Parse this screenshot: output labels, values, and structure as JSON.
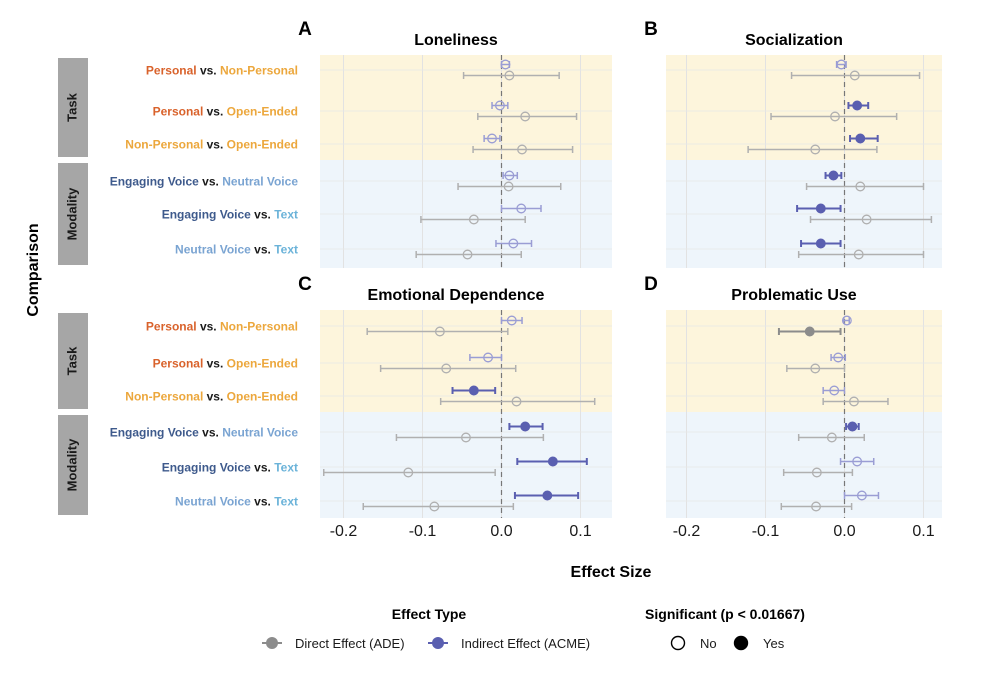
{
  "chart_data": {
    "type": "forest",
    "xlabel": "Effect Size",
    "ylabel": "Comparison",
    "xlim": [
      -0.23,
      0.14
    ],
    "xticks": [
      -0.2,
      -0.1,
      0.0,
      0.1
    ],
    "xtick_labels": [
      "-0.2",
      "-0.1",
      "0.0",
      "0.1"
    ],
    "reference_line": 0.0,
    "colors": {
      "personal": "#d9622b",
      "non_personal": "#eca73c",
      "open_ended": "#eca73c",
      "engaging_voice": "#3e5a8c",
      "neutral_voice": "#7aa4d2",
      "text": "#6bb3d9",
      "vs": "#1a1a1a",
      "direct": "#8c8c8c",
      "direct_light": "#b0b0b0",
      "indirect": "#5a5fb0",
      "indirect_light": "#9a9dd4",
      "task_bg": "#fdf5dc",
      "modality_bg": "#eef5fb",
      "strip_bg": "#a6a6a6",
      "strip_text": "#1a1a1a"
    },
    "groups": [
      {
        "name": "Task",
        "rows": [
          0,
          1,
          2
        ]
      },
      {
        "name": "Modality",
        "rows": [
          3,
          4,
          5
        ]
      }
    ],
    "rows": [
      {
        "left": "Personal",
        "left_key": "personal",
        "vs": "vs.",
        "right": "Non-Personal",
        "right_key": "non_personal"
      },
      {
        "left": "Personal",
        "left_key": "personal",
        "vs": "vs.",
        "right": "Open-Ended",
        "right_key": "open_ended"
      },
      {
        "left": "Non-Personal",
        "left_key": "non_personal",
        "vs": "vs.",
        "right": "Open-Ended",
        "right_key": "open_ended"
      },
      {
        "left": "Engaging Voice",
        "left_key": "engaging_voice",
        "vs": "vs.",
        "right": "Neutral Voice",
        "right_key": "neutral_voice"
      },
      {
        "left": "Engaging Voice",
        "left_key": "engaging_voice",
        "vs": "vs.",
        "right": "Text",
        "right_key": "text"
      },
      {
        "left": "Neutral Voice",
        "left_key": "neutral_voice",
        "vs": "vs.",
        "right": "Text",
        "right_key": "text"
      }
    ],
    "panels": [
      {
        "letter": "A",
        "title": "Loneliness",
        "series": [
          {
            "row": 0,
            "type": "indirect",
            "est": 0.005,
            "lo": 0.0,
            "hi": 0.01,
            "sig": false
          },
          {
            "row": 0,
            "type": "direct",
            "est": 0.01,
            "lo": -0.048,
            "hi": 0.073,
            "sig": false
          },
          {
            "row": 1,
            "type": "indirect",
            "est": -0.002,
            "lo": -0.012,
            "hi": 0.008,
            "sig": false
          },
          {
            "row": 1,
            "type": "direct",
            "est": 0.03,
            "lo": -0.03,
            "hi": 0.095,
            "sig": false
          },
          {
            "row": 2,
            "type": "indirect",
            "est": -0.012,
            "lo": -0.022,
            "hi": -0.002,
            "sig": false
          },
          {
            "row": 2,
            "type": "direct",
            "est": 0.026,
            "lo": -0.036,
            "hi": 0.09,
            "sig": false
          },
          {
            "row": 3,
            "type": "indirect",
            "est": 0.01,
            "lo": 0.002,
            "hi": 0.02,
            "sig": false
          },
          {
            "row": 3,
            "type": "direct",
            "est": 0.009,
            "lo": -0.055,
            "hi": 0.075,
            "sig": false
          },
          {
            "row": 4,
            "type": "indirect",
            "est": 0.025,
            "lo": 0.0,
            "hi": 0.05,
            "sig": false
          },
          {
            "row": 4,
            "type": "direct",
            "est": -0.035,
            "lo": -0.102,
            "hi": 0.03,
            "sig": false
          },
          {
            "row": 5,
            "type": "indirect",
            "est": 0.015,
            "lo": -0.007,
            "hi": 0.038,
            "sig": false
          },
          {
            "row": 5,
            "type": "direct",
            "est": -0.043,
            "lo": -0.108,
            "hi": 0.025,
            "sig": false
          }
        ]
      },
      {
        "letter": "B",
        "title": "Socialization",
        "series": [
          {
            "row": 0,
            "type": "indirect",
            "est": -0.004,
            "lo": -0.01,
            "hi": 0.002,
            "sig": false
          },
          {
            "row": 0,
            "type": "direct",
            "est": 0.013,
            "lo": -0.067,
            "hi": 0.095,
            "sig": false
          },
          {
            "row": 1,
            "type": "indirect",
            "est": 0.016,
            "lo": 0.005,
            "hi": 0.03,
            "sig": true
          },
          {
            "row": 1,
            "type": "direct",
            "est": -0.012,
            "lo": -0.093,
            "hi": 0.066,
            "sig": false
          },
          {
            "row": 2,
            "type": "indirect",
            "est": 0.02,
            "lo": 0.007,
            "hi": 0.042,
            "sig": true
          },
          {
            "row": 2,
            "type": "direct",
            "est": -0.037,
            "lo": -0.122,
            "hi": 0.041,
            "sig": false
          },
          {
            "row": 3,
            "type": "indirect",
            "est": -0.014,
            "lo": -0.024,
            "hi": -0.004,
            "sig": true
          },
          {
            "row": 3,
            "type": "direct",
            "est": 0.02,
            "lo": -0.048,
            "hi": 0.1,
            "sig": false
          },
          {
            "row": 4,
            "type": "indirect",
            "est": -0.03,
            "lo": -0.06,
            "hi": -0.005,
            "sig": true
          },
          {
            "row": 4,
            "type": "direct",
            "est": 0.028,
            "lo": -0.043,
            "hi": 0.11,
            "sig": false
          },
          {
            "row": 5,
            "type": "indirect",
            "est": -0.03,
            "lo": -0.055,
            "hi": -0.005,
            "sig": true
          },
          {
            "row": 5,
            "type": "direct",
            "est": 0.018,
            "lo": -0.058,
            "hi": 0.1,
            "sig": false
          }
        ]
      },
      {
        "letter": "C",
        "title": "Emotional Dependence",
        "series": [
          {
            "row": 0,
            "type": "indirect",
            "est": 0.013,
            "lo": 0.0,
            "hi": 0.026,
            "sig": false
          },
          {
            "row": 0,
            "type": "direct",
            "est": -0.078,
            "lo": -0.17,
            "hi": 0.008,
            "sig": false
          },
          {
            "row": 1,
            "type": "indirect",
            "est": -0.017,
            "lo": -0.04,
            "hi": 0.0,
            "sig": false
          },
          {
            "row": 1,
            "type": "direct",
            "est": -0.07,
            "lo": -0.153,
            "hi": 0.018,
            "sig": false
          },
          {
            "row": 2,
            "type": "indirect",
            "est": -0.035,
            "lo": -0.062,
            "hi": -0.008,
            "sig": true
          },
          {
            "row": 2,
            "type": "direct",
            "est": 0.019,
            "lo": -0.077,
            "hi": 0.118,
            "sig": false
          },
          {
            "row": 3,
            "type": "indirect",
            "est": 0.03,
            "lo": 0.01,
            "hi": 0.052,
            "sig": true
          },
          {
            "row": 3,
            "type": "direct",
            "est": -0.045,
            "lo": -0.133,
            "hi": 0.053,
            "sig": false
          },
          {
            "row": 4,
            "type": "indirect",
            "est": 0.065,
            "lo": 0.02,
            "hi": 0.108,
            "sig": true
          },
          {
            "row": 4,
            "type": "direct",
            "est": -0.118,
            "lo": -0.225,
            "hi": -0.008,
            "sig": false
          },
          {
            "row": 5,
            "type": "indirect",
            "est": 0.058,
            "lo": 0.017,
            "hi": 0.097,
            "sig": true
          },
          {
            "row": 5,
            "type": "direct",
            "est": -0.085,
            "lo": -0.175,
            "hi": 0.015,
            "sig": false
          }
        ]
      },
      {
        "letter": "D",
        "title": "Problematic Use",
        "series": [
          {
            "row": 0,
            "type": "indirect",
            "est": 0.003,
            "lo": -0.001,
            "hi": 0.006,
            "sig": false
          },
          {
            "row": 0,
            "type": "direct",
            "est": -0.044,
            "lo": -0.083,
            "hi": -0.005,
            "sig": true
          },
          {
            "row": 1,
            "type": "indirect",
            "est": -0.008,
            "lo": -0.017,
            "hi": 0.001,
            "sig": false
          },
          {
            "row": 1,
            "type": "direct",
            "est": -0.037,
            "lo": -0.073,
            "hi": 0.0,
            "sig": false
          },
          {
            "row": 2,
            "type": "indirect",
            "est": -0.013,
            "lo": -0.027,
            "hi": 0.0,
            "sig": false
          },
          {
            "row": 2,
            "type": "direct",
            "est": 0.012,
            "lo": -0.027,
            "hi": 0.055,
            "sig": false
          },
          {
            "row": 3,
            "type": "indirect",
            "est": 0.01,
            "lo": 0.002,
            "hi": 0.018,
            "sig": true
          },
          {
            "row": 3,
            "type": "direct",
            "est": -0.016,
            "lo": -0.058,
            "hi": 0.025,
            "sig": false
          },
          {
            "row": 4,
            "type": "indirect",
            "est": 0.016,
            "lo": -0.005,
            "hi": 0.037,
            "sig": false
          },
          {
            "row": 4,
            "type": "direct",
            "est": -0.035,
            "lo": -0.077,
            "hi": 0.01,
            "sig": false
          },
          {
            "row": 5,
            "type": "indirect",
            "est": 0.022,
            "lo": 0.0,
            "hi": 0.043,
            "sig": false
          },
          {
            "row": 5,
            "type": "direct",
            "est": -0.036,
            "lo": -0.08,
            "hi": 0.009,
            "sig": false
          }
        ]
      }
    ],
    "legend": {
      "effect_title": "Effect Type",
      "effect_items": [
        {
          "label": "Direct Effect (ADE)",
          "type": "direct"
        },
        {
          "label": "Indirect Effect (ACME)",
          "type": "indirect"
        }
      ],
      "sig_title": "Significant (p < 0.01667)",
      "sig_items": [
        {
          "label": "No",
          "filled": false
        },
        {
          "label": "Yes",
          "filled": true
        }
      ],
      "placement": "bottom"
    }
  }
}
